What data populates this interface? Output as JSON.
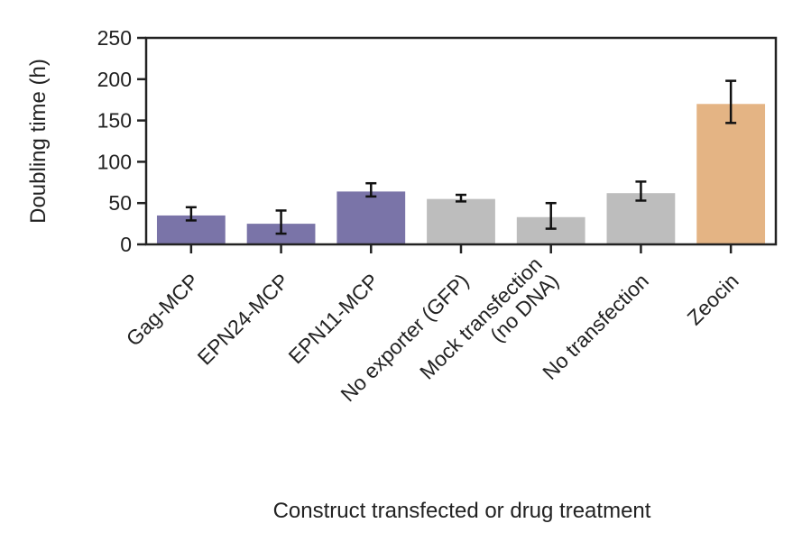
{
  "chart_data": {
    "type": "bar",
    "title": "",
    "xlabel": "Construct transfected or drug treatment",
    "ylabel": "Doubling time (h)",
    "ylim": [
      0,
      250
    ],
    "yticks": [
      0,
      50,
      100,
      150,
      200,
      250
    ],
    "grid": false,
    "legend": "none",
    "categories": [
      [
        "Gag-MCP"
      ],
      [
        "EPN24-MCP"
      ],
      [
        "EPN11-MCP"
      ],
      [
        "No exporter (GFP)"
      ],
      [
        "Mock transfection",
        "(no DNA)"
      ],
      [
        "No transfection"
      ],
      [
        "Zeocin"
      ]
    ],
    "values": [
      35,
      25,
      64,
      55,
      33,
      62,
      170
    ],
    "error_low": [
      29,
      13,
      58,
      52,
      19,
      53,
      147
    ],
    "error_high": [
      45,
      41,
      74,
      60,
      50,
      76,
      198
    ],
    "colors": [
      "#7a74a8",
      "#7a74a8",
      "#7a74a8",
      "#bdbdbd",
      "#bdbdbd",
      "#bdbdbd",
      "#e4b484"
    ]
  }
}
